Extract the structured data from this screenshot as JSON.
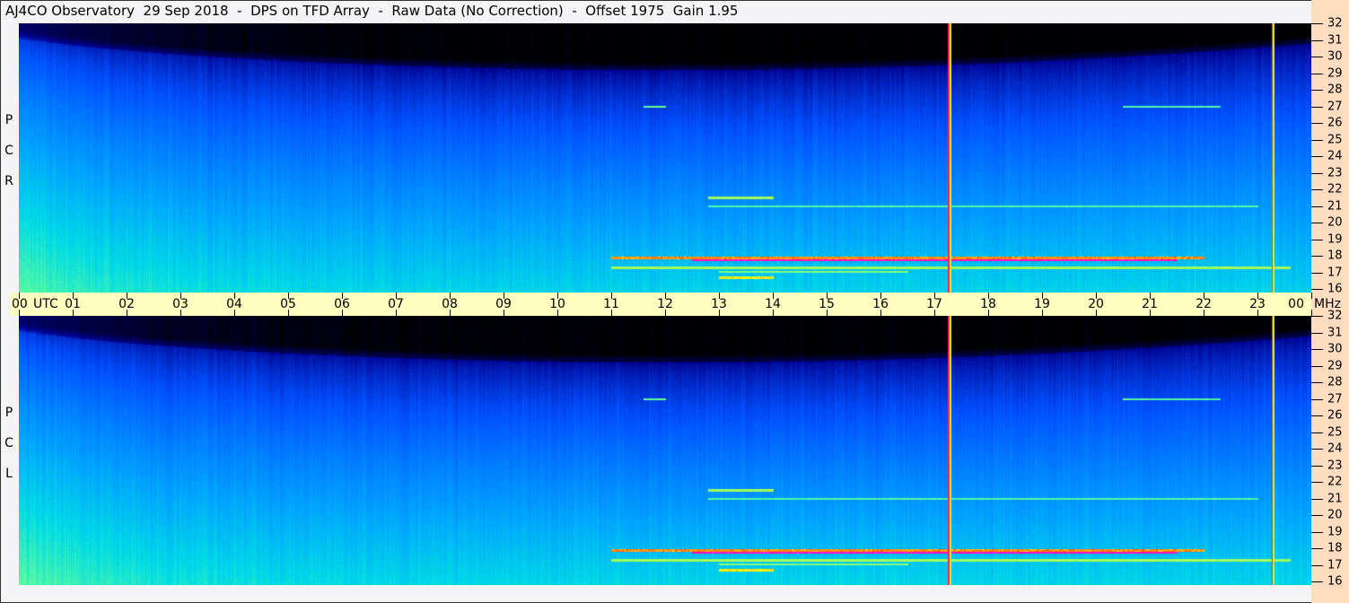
{
  "title": "AJ4CO Observatory  29 Sep 2018  -  DPS on TFD Array  -  Raw Data (No Correction)  -  Offset 1975  Gain 1.95",
  "chart_data": {
    "type": "heatmap",
    "title": "AJ4CO Observatory  29 Sep 2018  -  DPS on TFD Array  -  Raw Data (No Correction)  -  Offset 1975  Gain 1.95",
    "xlabel": "UTC",
    "ylabel": "MHz",
    "xlim": [
      0,
      24
    ],
    "ylim": [
      16,
      32
    ],
    "x_tick_labels": [
      "00",
      "01",
      "02",
      "03",
      "04",
      "05",
      "06",
      "07",
      "08",
      "09",
      "10",
      "11",
      "12",
      "13",
      "14",
      "15",
      "16",
      "17",
      "18",
      "19",
      "20",
      "21",
      "22",
      "23",
      "00"
    ],
    "y_tick_labels": [
      "32",
      "31",
      "30",
      "29",
      "28",
      "27",
      "26",
      "25",
      "24",
      "23",
      "22",
      "21",
      "20",
      "19",
      "18",
      "17",
      "16"
    ],
    "panels": [
      {
        "label": [
          "R",
          "C",
          "P"
        ]
      },
      {
        "label": [
          "L",
          "C",
          "P"
        ]
      }
    ],
    "colormap": [
      "#000000",
      "#00008c",
      "#0050ff",
      "#00a0ff",
      "#00dce6",
      "#64ff96",
      "#ffff00",
      "#ff2020",
      "#ff00ff",
      "#ffffff"
    ],
    "broadband_interference_utc": [
      17.27,
      23.28
    ],
    "emission_bands": [
      {
        "freq_mhz": 17.9,
        "utc": [
          11.0,
          22.0
        ],
        "level": 0.84
      },
      {
        "freq_mhz": 17.75,
        "utc": [
          12.5,
          21.5
        ],
        "level": 0.93
      },
      {
        "freq_mhz": 17.3,
        "utc": [
          11.0,
          23.6
        ],
        "level": 0.74
      },
      {
        "freq_mhz": 17.05,
        "utc": [
          13.0,
          16.5
        ],
        "level": 0.72
      },
      {
        "freq_mhz": 16.7,
        "utc": [
          13.0,
          14.0
        ],
        "level": 0.8
      },
      {
        "freq_mhz": 21.0,
        "utc": [
          12.8,
          23.0
        ],
        "level": 0.68
      },
      {
        "freq_mhz": 21.5,
        "utc": [
          12.8,
          14.0
        ],
        "level": 0.74
      },
      {
        "freq_mhz": 27.0,
        "utc": [
          11.6,
          12.0
        ],
        "level": 0.7
      },
      {
        "freq_mhz": 27.0,
        "utc": [
          20.5,
          22.3
        ],
        "level": 0.68
      }
    ]
  }
}
